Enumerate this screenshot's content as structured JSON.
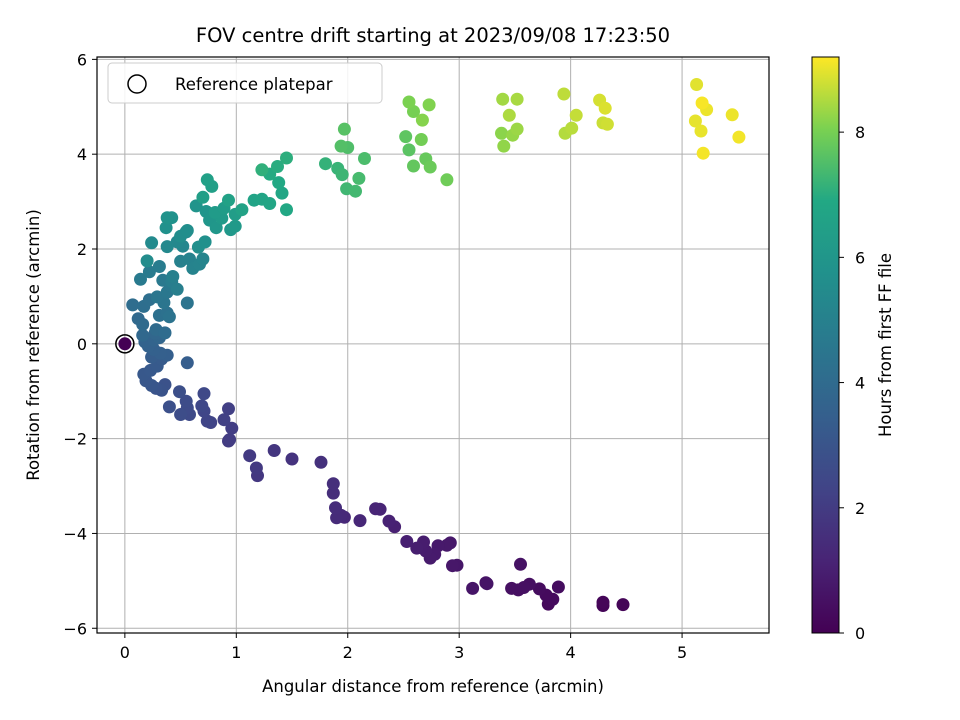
{
  "chart_data": {
    "type": "scatter",
    "title": "FOV centre drift starting at 2023/09/08 17:23:50",
    "xlabel": "Angular distance from reference (arcmin)",
    "ylabel": "Rotation from reference (arcmin)",
    "xlim": [
      -0.25,
      5.78
    ],
    "ylim": [
      -6.1,
      6.05
    ],
    "xticks": [
      0,
      1,
      2,
      3,
      4,
      5
    ],
    "yticks": [
      -6,
      -4,
      -2,
      0,
      2,
      4,
      6
    ],
    "grid": true,
    "legend": {
      "placement": "top-left",
      "entries": [
        "Reference platepar"
      ]
    },
    "reference_point": {
      "x": 0,
      "y": 0
    },
    "colorbar": {
      "label": "Hours from first FF file",
      "range": [
        0,
        9.2
      ],
      "ticks": [
        0,
        2,
        4,
        6,
        8
      ],
      "colormap": "viridis"
    },
    "points": [
      [
        0.0,
        0.0,
        0.0
      ],
      [
        4.29,
        -5.52,
        0.1
      ],
      [
        4.47,
        -5.5,
        0.12
      ],
      [
        4.29,
        -5.45,
        0.15
      ],
      [
        3.8,
        -5.49,
        0.25
      ],
      [
        3.84,
        -5.39,
        0.3
      ],
      [
        3.78,
        -5.3,
        0.3
      ],
      [
        3.72,
        -5.17,
        0.35
      ],
      [
        3.89,
        -5.13,
        0.4
      ],
      [
        3.63,
        -5.07,
        0.45
      ],
      [
        3.53,
        -5.19,
        0.45
      ],
      [
        3.58,
        -5.14,
        0.5
      ],
      [
        3.47,
        -5.16,
        0.5
      ],
      [
        3.55,
        -4.65,
        0.55
      ],
      [
        3.24,
        -5.04,
        0.6
      ],
      [
        3.25,
        -5.06,
        0.62
      ],
      [
        3.12,
        -5.16,
        0.65
      ],
      [
        2.98,
        -4.67,
        0.7
      ],
      [
        2.94,
        -4.68,
        0.72
      ],
      [
        2.92,
        -4.2,
        0.75
      ],
      [
        2.89,
        -4.25,
        0.78
      ],
      [
        2.81,
        -4.26,
        0.8
      ],
      [
        2.78,
        -4.44,
        0.82
      ],
      [
        2.74,
        -4.52,
        0.85
      ],
      [
        2.7,
        -4.37,
        0.88
      ],
      [
        2.66,
        -4.3,
        0.9
      ],
      [
        2.68,
        -4.18,
        0.92
      ],
      [
        2.62,
        -4.31,
        0.95
      ],
      [
        2.53,
        -4.17,
        1.0
      ],
      [
        2.42,
        -3.86,
        1.05
      ],
      [
        2.37,
        -3.74,
        1.1
      ],
      [
        2.29,
        -3.49,
        1.15
      ],
      [
        2.25,
        -3.48,
        1.2
      ],
      [
        2.11,
        -3.73,
        1.25
      ],
      [
        1.97,
        -3.66,
        1.3
      ],
      [
        1.94,
        -3.62,
        1.35
      ],
      [
        1.9,
        -3.67,
        1.4
      ],
      [
        1.89,
        -3.46,
        1.45
      ],
      [
        1.87,
        -3.15,
        1.5
      ],
      [
        1.87,
        -2.95,
        1.55
      ],
      [
        1.76,
        -2.5,
        1.6
      ],
      [
        1.5,
        -2.43,
        1.7
      ],
      [
        1.34,
        -2.25,
        1.8
      ],
      [
        1.19,
        -2.78,
        1.85
      ],
      [
        1.18,
        -2.62,
        1.9
      ],
      [
        1.12,
        -2.36,
        1.95
      ],
      [
        0.93,
        -2.05,
        2.0
      ],
      [
        0.94,
        -2.02,
        2.05
      ],
      [
        0.96,
        -1.78,
        2.1
      ],
      [
        0.93,
        -1.37,
        2.15
      ],
      [
        0.89,
        -1.6,
        2.2
      ],
      [
        0.77,
        -1.66,
        2.3
      ],
      [
        0.74,
        -1.63,
        2.35
      ],
      [
        0.71,
        -1.42,
        2.4
      ],
      [
        0.69,
        -1.31,
        2.45
      ],
      [
        0.71,
        -1.05,
        2.5
      ],
      [
        0.58,
        -1.49,
        2.55
      ],
      [
        0.56,
        -1.35,
        2.6
      ],
      [
        0.55,
        -1.21,
        2.65
      ],
      [
        0.5,
        -1.49,
        2.7
      ],
      [
        0.49,
        -1.01,
        2.75
      ],
      [
        0.4,
        -1.33,
        2.8
      ],
      [
        0.36,
        -0.86,
        2.9
      ],
      [
        0.33,
        -0.98,
        2.95
      ],
      [
        0.28,
        -0.94,
        3.0
      ],
      [
        0.24,
        -0.88,
        3.05
      ],
      [
        0.19,
        -0.78,
        3.1
      ],
      [
        0.17,
        -0.64,
        3.15
      ],
      [
        0.23,
        -0.56,
        3.2
      ],
      [
        0.29,
        -0.47,
        3.25
      ],
      [
        0.33,
        -0.32,
        3.3
      ],
      [
        0.24,
        -0.28,
        3.35
      ],
      [
        0.56,
        -0.4,
        3.4
      ],
      [
        0.38,
        -0.24,
        3.45
      ],
      [
        0.32,
        -0.2,
        3.5
      ],
      [
        0.26,
        -0.12,
        3.55
      ],
      [
        0.21,
        -0.05,
        3.6
      ],
      [
        0.18,
        0.04,
        3.65
      ],
      [
        0.26,
        0.08,
        3.7
      ],
      [
        0.31,
        0.13,
        3.75
      ],
      [
        0.27,
        0.22,
        3.8
      ],
      [
        0.16,
        0.18,
        3.85
      ],
      [
        0.12,
        0.53,
        3.9
      ],
      [
        0.16,
        0.41,
        3.95
      ],
      [
        0.28,
        0.3,
        4.0
      ],
      [
        0.36,
        0.23,
        4.05
      ],
      [
        0.07,
        0.82,
        4.1
      ],
      [
        0.17,
        0.79,
        4.15
      ],
      [
        0.22,
        0.93,
        4.2
      ],
      [
        0.31,
        0.6,
        4.25
      ],
      [
        0.38,
        0.65,
        4.3
      ],
      [
        0.4,
        0.57,
        4.35
      ],
      [
        0.56,
        0.86,
        4.4
      ],
      [
        0.35,
        0.87,
        4.45
      ],
      [
        0.29,
        0.99,
        4.5
      ],
      [
        0.38,
        1.09,
        4.55
      ],
      [
        0.41,
        1.23,
        4.6
      ],
      [
        0.34,
        1.34,
        4.65
      ],
      [
        0.14,
        1.36,
        4.7
      ],
      [
        0.22,
        1.52,
        4.75
      ],
      [
        0.31,
        1.63,
        4.8
      ],
      [
        0.42,
        1.31,
        4.85
      ],
      [
        0.47,
        1.15,
        4.9
      ],
      [
        0.43,
        1.42,
        4.95
      ],
      [
        0.5,
        1.74,
        5.0
      ],
      [
        0.58,
        1.79,
        5.05
      ],
      [
        0.61,
        1.59,
        5.1
      ],
      [
        0.67,
        1.68,
        5.15
      ],
      [
        0.7,
        1.79,
        5.2
      ],
      [
        0.52,
        2.06,
        5.25
      ],
      [
        0.55,
        2.36,
        5.3
      ],
      [
        0.47,
        2.15,
        5.35
      ],
      [
        0.38,
        2.05,
        5.4
      ],
      [
        0.24,
        2.13,
        5.45
      ],
      [
        0.2,
        1.75,
        5.5
      ],
      [
        0.5,
        2.27,
        5.55
      ],
      [
        0.56,
        2.39,
        5.6
      ],
      [
        0.66,
        2.04,
        5.65
      ],
      [
        0.72,
        2.15,
        5.7
      ],
      [
        0.37,
        2.45,
        5.75
      ],
      [
        0.42,
        2.66,
        5.8
      ],
      [
        0.38,
        2.66,
        5.85
      ],
      [
        0.64,
        2.91,
        5.9
      ],
      [
        0.73,
        2.79,
        5.95
      ],
      [
        0.76,
        2.61,
        6.0
      ],
      [
        0.82,
        2.45,
        6.05
      ],
      [
        0.95,
        2.41,
        6.1
      ],
      [
        0.99,
        2.48,
        6.15
      ],
      [
        0.87,
        2.65,
        6.2
      ],
      [
        0.81,
        2.77,
        6.25
      ],
      [
        0.89,
        2.86,
        6.3
      ],
      [
        0.99,
        2.73,
        6.35
      ],
      [
        0.7,
        3.09,
        6.4
      ],
      [
        0.78,
        3.32,
        6.45
      ],
      [
        0.74,
        3.46,
        6.5
      ],
      [
        0.93,
        3.03,
        6.55
      ],
      [
        1.05,
        2.83,
        6.6
      ],
      [
        1.16,
        3.03,
        6.65
      ],
      [
        1.23,
        3.05,
        6.7
      ],
      [
        1.3,
        2.96,
        6.75
      ],
      [
        1.41,
        3.18,
        6.8
      ],
      [
        1.45,
        2.83,
        6.85
      ],
      [
        1.38,
        3.4,
        6.9
      ],
      [
        1.3,
        3.58,
        6.95
      ],
      [
        1.37,
        3.74,
        7.0
      ],
      [
        1.45,
        3.92,
        7.05
      ],
      [
        1.23,
        3.67,
        7.1
      ],
      [
        1.8,
        3.8,
        7.15
      ],
      [
        1.91,
        3.7,
        7.2
      ],
      [
        1.95,
        3.57,
        7.25
      ],
      [
        1.99,
        3.27,
        7.3
      ],
      [
        2.07,
        3.22,
        7.35
      ],
      [
        2.1,
        3.49,
        7.4
      ],
      [
        2.15,
        3.91,
        7.45
      ],
      [
        2.0,
        4.14,
        7.5
      ],
      [
        1.94,
        4.17,
        7.55
      ],
      [
        1.97,
        4.53,
        7.6
      ],
      [
        2.55,
        4.09,
        7.65
      ],
      [
        2.52,
        4.37,
        7.7
      ],
      [
        2.59,
        3.75,
        7.75
      ],
      [
        2.7,
        3.9,
        7.8
      ],
      [
        2.74,
        3.73,
        7.85
      ],
      [
        2.89,
        3.46,
        7.9
      ],
      [
        2.66,
        4.31,
        7.95
      ],
      [
        2.59,
        4.9,
        8.0
      ],
      [
        2.55,
        5.1,
        8.05
      ],
      [
        2.73,
        5.04,
        8.1
      ],
      [
        2.67,
        4.72,
        8.15
      ],
      [
        3.38,
        4.44,
        8.2
      ],
      [
        3.4,
        4.17,
        8.25
      ],
      [
        3.48,
        4.4,
        8.3
      ],
      [
        3.52,
        4.53,
        8.35
      ],
      [
        3.39,
        5.16,
        8.4
      ],
      [
        3.52,
        5.16,
        8.45
      ],
      [
        3.45,
        4.82,
        8.5
      ],
      [
        3.95,
        4.44,
        8.55
      ],
      [
        4.01,
        4.55,
        8.6
      ],
      [
        3.94,
        5.27,
        8.65
      ],
      [
        4.05,
        4.82,
        8.7
      ],
      [
        4.29,
        4.66,
        8.75
      ],
      [
        4.33,
        4.63,
        8.8
      ],
      [
        4.26,
        5.14,
        8.85
      ],
      [
        4.31,
        4.97,
        8.9
      ],
      [
        5.13,
        5.47,
        8.95
      ],
      [
        5.12,
        4.7,
        9.0
      ],
      [
        5.17,
        4.49,
        9.02
      ],
      [
        5.22,
        4.94,
        9.05
      ],
      [
        5.45,
        4.83,
        9.05
      ],
      [
        5.51,
        4.36,
        9.1
      ],
      [
        5.19,
        4.02,
        9.12
      ],
      [
        5.18,
        5.08,
        9.15
      ]
    ]
  }
}
